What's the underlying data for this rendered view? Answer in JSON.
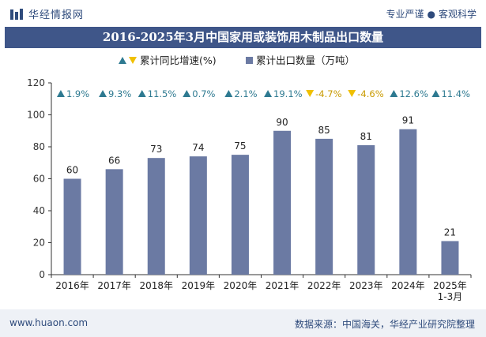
{
  "header": {
    "brand": "华经情报网",
    "tagline_left": "专业严谨",
    "tagline_sep": "●",
    "tagline_right": "客观科学"
  },
  "title": "2016-2025年3月中国家用或装饰用木制品出口数量",
  "footer": {
    "website": "www.huaon.com",
    "source": "数据来源：中国海关，华经产业研究院整理"
  },
  "colors": {
    "bar": "#6b7aa3",
    "up": "#2e7a91",
    "down": "#f0c000",
    "title_bg": "#3f5689",
    "axis": "#333333"
  },
  "chart_data": {
    "type": "bar",
    "categories": [
      "2016年",
      "2017年",
      "2018年",
      "2019年",
      "2020年",
      "2021年",
      "2022年",
      "2023年",
      "2024年",
      "2025年\n1-3月"
    ],
    "series": [
      {
        "name": "累计出口数量（万吨）",
        "values": [
          60,
          66,
          73,
          74,
          75,
          90,
          85,
          81,
          91,
          21
        ]
      }
    ],
    "growth": {
      "name": "累计同比增速(%)",
      "labels": [
        "1.9%",
        "9.3%",
        "11.5%",
        "0.7%",
        "2.1%",
        "19.1%",
        "-4.7%",
        "-4.6%",
        "12.6%",
        "11.4%"
      ],
      "direction": [
        "up",
        "up",
        "up",
        "up",
        "up",
        "up",
        "down",
        "down",
        "up",
        "up"
      ]
    },
    "yticks": [
      0,
      20,
      40,
      60,
      80,
      100,
      120
    ],
    "ylim": [
      0,
      120
    ],
    "legend_position": "top-center",
    "grid": false
  }
}
